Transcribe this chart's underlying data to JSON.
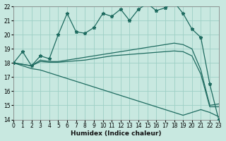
{
  "xlabel": "Humidex (Indice chaleur)",
  "xlim": [
    0,
    23
  ],
  "ylim": [
    14,
    22
  ],
  "xticks": [
    0,
    1,
    2,
    3,
    4,
    5,
    6,
    7,
    8,
    9,
    10,
    11,
    12,
    13,
    14,
    15,
    16,
    17,
    18,
    19,
    20,
    21,
    22,
    23
  ],
  "yticks": [
    14,
    15,
    16,
    17,
    18,
    19,
    20,
    21,
    22
  ],
  "bg_color": "#c8e8e0",
  "grid_color": "#9ecfc5",
  "line_color": "#1e6b60",
  "series_jagged": [
    18.0,
    18.8,
    17.8,
    18.5,
    18.3,
    20.0,
    21.5,
    20.2,
    20.1,
    20.5,
    21.5,
    21.3,
    21.8,
    21.0,
    21.8,
    22.2,
    21.7,
    21.9,
    22.3,
    21.5,
    20.4,
    19.8,
    16.5,
    14.0
  ],
  "series_up1": [
    18.0,
    17.9,
    17.8,
    18.2,
    18.1,
    18.1,
    18.2,
    18.3,
    18.4,
    18.5,
    18.6,
    18.7,
    18.8,
    18.9,
    19.0,
    19.1,
    19.2,
    19.3,
    19.4,
    19.3,
    19.0,
    17.5,
    15.0,
    15.1
  ],
  "series_up2": [
    18.0,
    17.9,
    17.8,
    18.1,
    18.05,
    18.05,
    18.1,
    18.15,
    18.2,
    18.3,
    18.4,
    18.5,
    18.55,
    18.6,
    18.65,
    18.7,
    18.75,
    18.8,
    18.85,
    18.8,
    18.5,
    17.2,
    14.9,
    14.9
  ],
  "series_down": [
    18.0,
    17.8,
    17.6,
    17.5,
    17.3,
    17.1,
    16.9,
    16.7,
    16.5,
    16.3,
    16.1,
    15.9,
    15.7,
    15.5,
    15.3,
    15.1,
    14.9,
    14.7,
    14.5,
    14.3,
    14.5,
    14.7,
    14.5,
    14.2
  ],
  "marker": "*",
  "markersize": 3.5,
  "linewidth": 0.9,
  "tick_fontsize": 5.5,
  "xlabel_fontsize": 6.5
}
